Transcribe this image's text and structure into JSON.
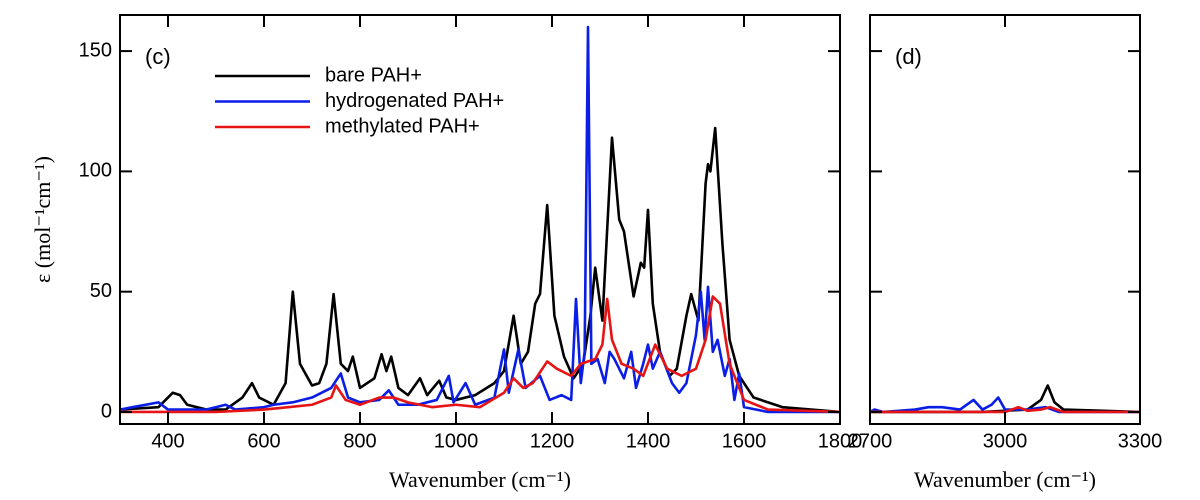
{
  "chart_data": [
    {
      "type": "line",
      "panel_label": "(c)",
      "x_label": "Wavenumber (cm⁻¹)",
      "y_label": "ε (mol⁻¹cm⁻¹)",
      "xlim": [
        300,
        1800
      ],
      "ylim": [
        -5,
        165
      ],
      "xticks": [
        400,
        600,
        800,
        1000,
        1200,
        1400,
        1600,
        1800
      ],
      "yticks": [
        0,
        50,
        100,
        150
      ],
      "show_ytick_labels": true,
      "legend": "upper-left",
      "series": [
        {
          "name": "bare PAH+",
          "color": "#000000",
          "x": [
            300,
            380,
            410,
            425,
            440,
            480,
            520,
            555,
            575,
            590,
            620,
            645,
            660,
            675,
            700,
            715,
            730,
            745,
            760,
            775,
            785,
            800,
            830,
            845,
            855,
            865,
            880,
            900,
            925,
            940,
            965,
            980,
            1000,
            1040,
            1080,
            1100,
            1120,
            1135,
            1150,
            1165,
            1175,
            1190,
            1205,
            1225,
            1245,
            1265,
            1280,
            1290,
            1305,
            1325,
            1340,
            1350,
            1370,
            1385,
            1392,
            1400,
            1410,
            1425,
            1445,
            1460,
            1480,
            1490,
            1505,
            1520,
            1525,
            1530,
            1540,
            1555,
            1570,
            1590,
            1620,
            1680,
            1800
          ],
          "values": [
            1,
            2,
            8,
            7,
            3,
            1,
            1,
            6,
            12,
            6,
            3,
            12,
            50,
            20,
            11,
            12,
            20,
            49,
            20,
            17,
            23,
            10,
            14,
            24,
            17,
            23,
            10,
            7,
            14,
            7,
            13,
            6,
            5,
            7,
            12,
            17,
            40,
            20,
            25,
            45,
            49,
            86,
            40,
            23,
            14,
            20,
            40,
            60,
            38,
            114,
            80,
            75,
            48,
            62,
            60,
            84,
            45,
            25,
            15,
            18,
            40,
            49,
            38,
            95,
            103,
            100,
            118,
            70,
            30,
            15,
            6,
            2,
            0
          ]
        },
        {
          "name": "hydrogenated PAH+",
          "color": "#0a1ee6",
          "x": [
            300,
            380,
            400,
            480,
            520,
            540,
            600,
            620,
            660,
            700,
            740,
            760,
            775,
            800,
            840,
            860,
            880,
            920,
            960,
            985,
            995,
            1020,
            1040,
            1080,
            1100,
            1110,
            1130,
            1145,
            1175,
            1195,
            1220,
            1240,
            1250,
            1260,
            1268,
            1275,
            1282,
            1295,
            1310,
            1320,
            1330,
            1350,
            1365,
            1375,
            1390,
            1400,
            1410,
            1425,
            1450,
            1465,
            1480,
            1500,
            1510,
            1518,
            1525,
            1535,
            1545,
            1560,
            1570,
            1580,
            1590,
            1600,
            1650,
            1800
          ],
          "values": [
            1,
            4,
            1,
            1,
            3,
            1,
            2,
            3,
            4,
            6,
            10,
            16,
            6,
            4,
            5,
            9,
            3,
            3,
            5,
            15,
            4,
            12,
            3,
            6,
            26,
            8,
            26,
            10,
            15,
            5,
            7,
            5,
            47,
            12,
            25,
            160,
            20,
            22,
            12,
            25,
            22,
            14,
            25,
            10,
            20,
            28,
            18,
            25,
            12,
            8,
            12,
            32,
            50,
            30,
            52,
            25,
            30,
            15,
            22,
            5,
            16,
            2,
            0,
            0
          ]
        },
        {
          "name": "methylated PAH+",
          "color": "#e61414",
          "x": [
            300,
            400,
            500,
            600,
            650,
            700,
            740,
            750,
            770,
            800,
            840,
            870,
            900,
            950,
            1000,
            1050,
            1100,
            1120,
            1140,
            1160,
            1190,
            1210,
            1240,
            1260,
            1290,
            1305,
            1315,
            1325,
            1345,
            1370,
            1390,
            1415,
            1440,
            1470,
            1500,
            1520,
            1535,
            1550,
            1570,
            1600,
            1650,
            1800
          ],
          "values": [
            0,
            0,
            0,
            1,
            2,
            3,
            6,
            11,
            5,
            3,
            6,
            6,
            4,
            2,
            3,
            2,
            8,
            14,
            10,
            12,
            21,
            18,
            15,
            20,
            22,
            28,
            47,
            30,
            20,
            18,
            15,
            28,
            18,
            15,
            18,
            30,
            48,
            45,
            20,
            5,
            1,
            0
          ]
        }
      ]
    },
    {
      "type": "line",
      "panel_label": "(d)",
      "x_label": "Wavenumber (cm⁻¹)",
      "xlim": [
        2700,
        3300
      ],
      "ylim": [
        -5,
        165
      ],
      "xticks": [
        2700,
        3000,
        3300
      ],
      "yticks": [
        0,
        50,
        100,
        150
      ],
      "show_ytick_labels": false,
      "series": [
        {
          "color": "#000000",
          "x": [
            2700,
            2950,
            3050,
            3080,
            3095,
            3110,
            3130,
            3300
          ],
          "values": [
            0,
            0,
            1,
            5,
            11,
            4,
            1,
            0
          ]
        },
        {
          "color": "#0a1ee6",
          "x": [
            2700,
            2710,
            2730,
            2800,
            2830,
            2860,
            2900,
            2930,
            2950,
            2970,
            2985,
            3000,
            3050,
            3090,
            3120,
            3300
          ],
          "values": [
            0,
            1,
            0,
            1,
            2,
            2,
            1,
            5,
            1,
            3,
            6,
            1,
            1,
            2,
            0,
            0
          ]
        },
        {
          "color": "#e61414",
          "x": [
            2700,
            2900,
            3000,
            3030,
            3050,
            3080,
            3100,
            3130,
            3300
          ],
          "values": [
            0,
            0,
            0,
            2,
            0.5,
            1,
            2,
            0,
            0
          ]
        }
      ]
    }
  ]
}
